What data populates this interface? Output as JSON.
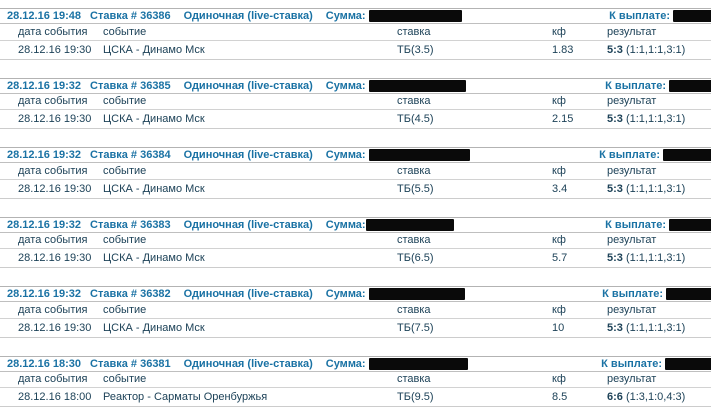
{
  "colors": {
    "accent_header_blue": "#1a72a4",
    "body_text": "#1d4258",
    "border_gray": "#bfbfbf",
    "redaction_black": "#0a0a0a",
    "background": "#ffffff"
  },
  "labels": {
    "sum": "Сумма:",
    "payout": "К выплате:",
    "columns": [
      "дата события",
      "событие",
      "ставка",
      "кф",
      "результат"
    ],
    "redacted_sum": "sum-redaction-block",
    "redacted_payout": "payout-redaction-block"
  },
  "bets": [
    {
      "placed_at": "28.12.16 19:48",
      "bet_id": "Ставка # 36386",
      "bet_type": "Одиночная (live-ставка)",
      "row": {
        "date": "28.12.16 19:30",
        "event": "ЦСКА - Динамо Мск",
        "stake": "ТБ(3.5)",
        "odds": "1.83",
        "score": "5:3",
        "periods": "(1:1,1:1,3:1)"
      }
    },
    {
      "placed_at": "28.12.16 19:32",
      "bet_id": "Ставка # 36385",
      "bet_type": "Одиночная (live-ставка)",
      "row": {
        "date": "28.12.16 19:30",
        "event": "ЦСКА - Динамо Мск",
        "stake": "ТБ(4.5)",
        "odds": "2.15",
        "score": "5:3",
        "periods": "(1:1,1:1,3:1)"
      }
    },
    {
      "placed_at": "28.12.16 19:32",
      "bet_id": "Ставка # 36384",
      "bet_type": "Одиночная (live-ставка)",
      "row": {
        "date": "28.12.16 19:30",
        "event": "ЦСКА - Динамо Мск",
        "stake": "ТБ(5.5)",
        "odds": "3.4",
        "score": "5:3",
        "periods": "(1:1,1:1,3:1)"
      }
    },
    {
      "placed_at": "28.12.16 19:32",
      "bet_id": "Ставка # 36383",
      "bet_type": "Одиночная (live-ставка)",
      "row": {
        "date": "28.12.16 19:30",
        "event": "ЦСКА - Динамо Мск",
        "stake": "ТБ(6.5)",
        "odds": "5.7",
        "score": "5:3",
        "periods": "(1:1,1:1,3:1)"
      }
    },
    {
      "placed_at": "28.12.16 19:32",
      "bet_id": "Ставка # 36382",
      "bet_type": "Одиночная (live-ставка)",
      "row": {
        "date": "28.12.16 19:30",
        "event": "ЦСКА - Динамо Мск",
        "stake": "ТБ(7.5)",
        "odds": "10",
        "score": "5:3",
        "periods": "(1:1,1:1,3:1)"
      }
    },
    {
      "placed_at": "28.12.16 18:30",
      "bet_id": "Ставка # 36381",
      "bet_type": "Одиночная (live-ставка)",
      "row": {
        "date": "28.12.16 18:00",
        "event": "Реактор - Сарматы Оренбуржья",
        "stake": "ТБ(9.5)",
        "odds": "8.5",
        "score": "6:6",
        "periods": "(1:3,1:0,4:3)"
      }
    }
  ]
}
